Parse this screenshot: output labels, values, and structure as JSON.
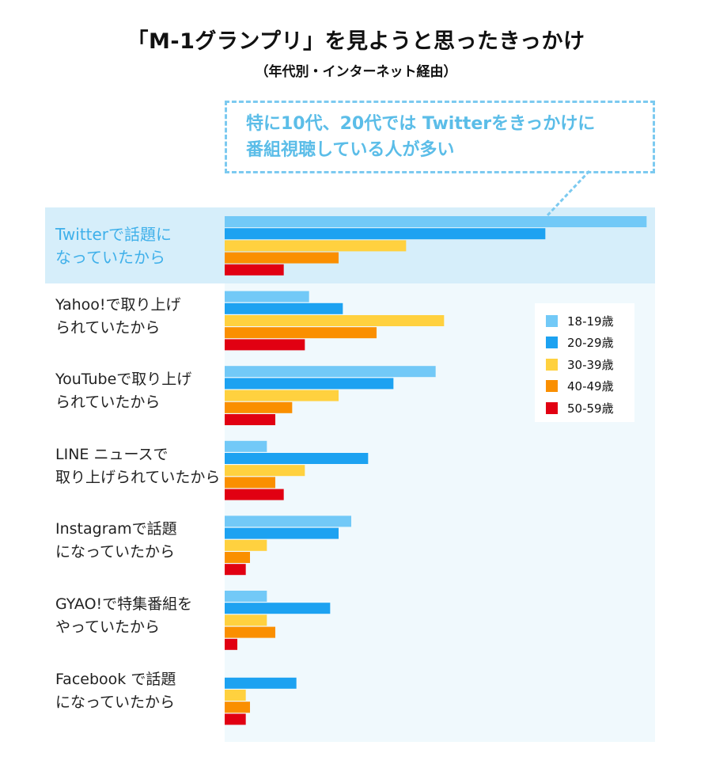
{
  "chart_data": {
    "type": "bar",
    "orientation": "horizontal",
    "title": "「M-1グランプリ」を見ようと思ったきっかけ",
    "subtitle": "（年代別・インターネット経由）",
    "annotation": [
      "特に10代、20代では Twitterをきっかけに",
      "番組視聴している人が多い"
    ],
    "highlighted_category": 0,
    "value_scale": "relative, no axis printed",
    "xlim": [
      0,
      102
    ],
    "grid": false,
    "legend_position": "right",
    "categories": [
      "Twitterで話題に\nなっていたから",
      "Yahoo!で取り上げ\nられていたから",
      "YouTubeで取り上げ\nられていたから",
      "LINE ニュースで\n取り上げられていたから",
      "Instagramで話題\nになっていたから",
      "GYAO!で特集番組を\nやっていたから",
      "Facebook で話題\nになっていたから"
    ],
    "series": [
      {
        "name": "18-19歳",
        "color": "#72c9f7",
        "values": [
          100,
          20,
          50,
          10,
          30,
          10,
          0
        ]
      },
      {
        "name": "20-29歳",
        "color": "#1da2f1",
        "values": [
          76,
          28,
          40,
          34,
          27,
          25,
          17
        ]
      },
      {
        "name": "30-39歳",
        "color": "#ffd13f",
        "values": [
          43,
          52,
          27,
          19,
          10,
          10,
          5
        ]
      },
      {
        "name": "40-49歳",
        "color": "#fa8f00",
        "values": [
          27,
          36,
          16,
          12,
          6,
          12,
          6
        ]
      },
      {
        "name": "50-59歳",
        "color": "#e10012",
        "values": [
          14,
          19,
          12,
          14,
          5,
          3,
          5
        ]
      }
    ]
  }
}
